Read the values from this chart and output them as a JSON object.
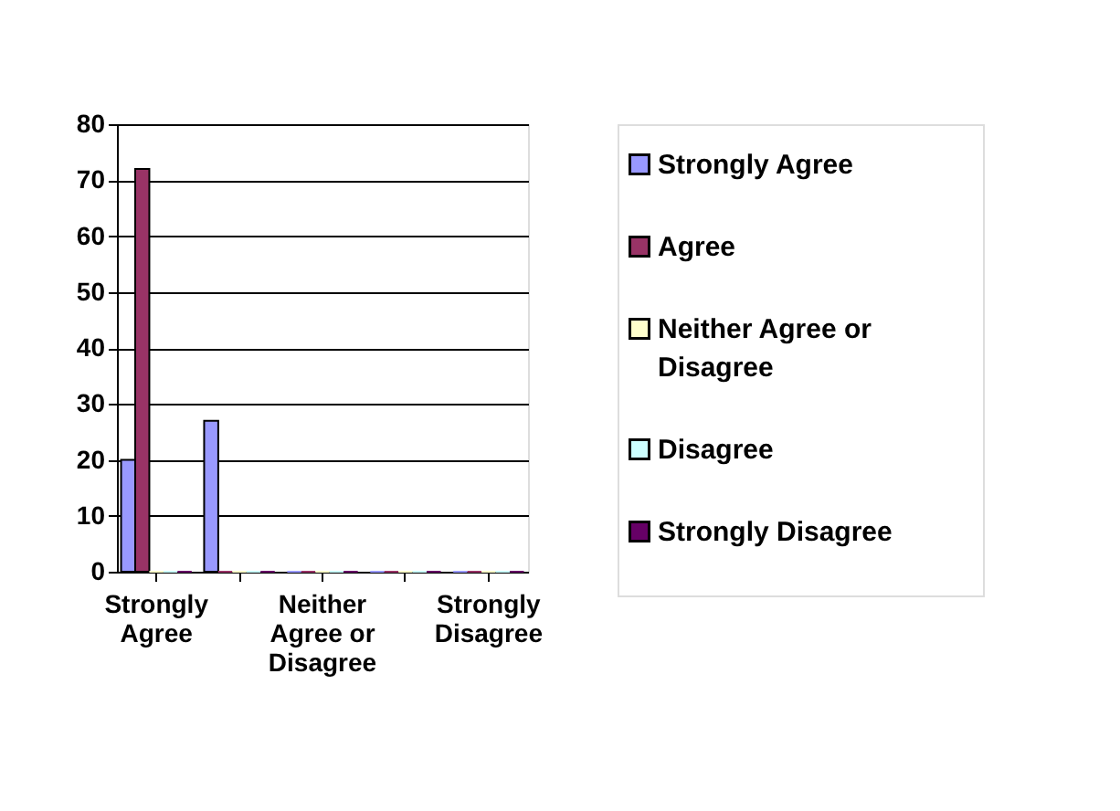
{
  "chart_data": {
    "type": "bar",
    "categories": [
      "Strongly Agree",
      null,
      "Neither Agree or Disagree",
      null,
      "Strongly Disagree"
    ],
    "series": [
      {
        "name": "Strongly Agree",
        "color": "#9999ff",
        "values": [
          20,
          27,
          0,
          0,
          0
        ]
      },
      {
        "name": "Agree",
        "color": "#993366",
        "values": [
          72,
          0,
          0,
          0,
          0
        ]
      },
      {
        "name": "Neither Agree or Disagree",
        "color": "#ffffcc",
        "values": [
          0,
          0,
          0,
          0,
          0
        ]
      },
      {
        "name": "Disagree",
        "color": "#ccffff",
        "values": [
          0,
          0,
          0,
          0,
          0
        ]
      },
      {
        "name": "Strongly Disagree",
        "color": "#660066",
        "values": [
          0,
          0,
          0,
          0,
          0
        ]
      }
    ],
    "ylim": [
      0,
      80
    ],
    "yticks": [
      0,
      10,
      20,
      30,
      40,
      50,
      60,
      70,
      80
    ],
    "grid": "y",
    "legend": "right"
  }
}
